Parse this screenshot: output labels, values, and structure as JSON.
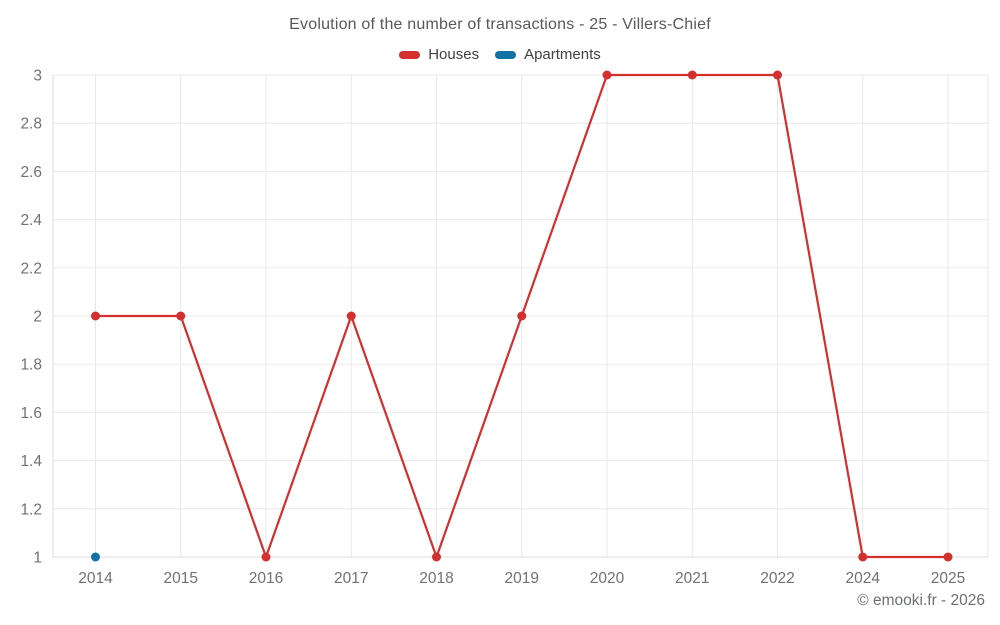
{
  "chart": {
    "title": "Evolution of the number of transactions - 25 - Villers-Chief",
    "credit": "© emooki.fr - 2026"
  },
  "chart_data": {
    "type": "line",
    "title": "Evolution of the number of transactions - 25 - Villers-Chief",
    "categories": [
      "2014",
      "2015",
      "2016",
      "2017",
      "2018",
      "2019",
      "2020",
      "2021",
      "2022",
      "2024",
      "2025"
    ],
    "series": [
      {
        "name": "Houses",
        "color": "#d32f2f",
        "values": [
          2,
          2,
          1,
          2,
          1,
          2,
          3,
          3,
          3,
          1,
          1
        ]
      },
      {
        "name": "Apartments",
        "color": "#1371a6",
        "values": [
          1,
          null,
          null,
          null,
          null,
          null,
          null,
          null,
          null,
          null,
          null
        ]
      }
    ],
    "xlabel": "",
    "ylabel": "",
    "ylim": [
      1,
      3
    ],
    "y_ticks": [
      1,
      1.2,
      1.4,
      1.6,
      1.8,
      2,
      2.2,
      2.4,
      2.6,
      2.8,
      3
    ],
    "y_tick_labels": [
      "1",
      "1.2",
      "1.4",
      "1.6",
      "1.8",
      "2",
      "2.2",
      "2.4",
      "2.6",
      "2.8",
      "3"
    ],
    "grid": true,
    "legend_position": "top",
    "marker_radius": 4.5,
    "line_width": 2.2,
    "grid_color": "#e9e9e9",
    "axis_color": "#dcdcdc",
    "tick_color": "#717171"
  }
}
